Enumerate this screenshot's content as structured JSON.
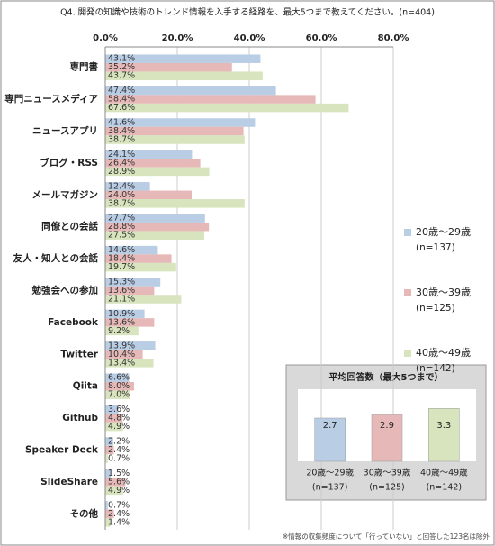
{
  "chart_data": [
    {
      "type": "hbar",
      "title": "Q4. 開発の知識や技術のトレンド情報を入手する経路を、最大5つまで教えてください。(n=404)",
      "categories": [
        "専門書",
        "専門ニュースメディア",
        "ニュースアプリ",
        "ブログ・RSS",
        "メールマガジン",
        "同僚との会話",
        "友人・知人との会話",
        "勉強会への参加",
        "Facebook",
        "Twitter",
        "Qiita",
        "Github",
        "Speaker Deck",
        "SlideShare",
        "その他"
      ],
      "series": [
        {
          "name": "20歳～29歳",
          "sublabel": "(n=137)",
          "color": "#b9cde5",
          "values": [
            43.1,
            47.4,
            41.6,
            24.1,
            12.4,
            27.7,
            14.6,
            15.3,
            10.9,
            13.9,
            6.6,
            3.6,
            2.2,
            1.5,
            0.7
          ],
          "value_labels": [
            "43.1%",
            "47.4%",
            "41.6%",
            "24.1%",
            "12.4%",
            "27.7%",
            "14.6%",
            "15.3%",
            "10.9%",
            "13.9%",
            "6.6%",
            "3.6%",
            "2.2%",
            "1.5%",
            "0.7%"
          ]
        },
        {
          "name": "30歳～39歳",
          "sublabel": "(n=125)",
          "color": "#e6b9b8",
          "values": [
            35.2,
            58.4,
            38.4,
            26.4,
            24.0,
            28.8,
            18.4,
            13.6,
            13.6,
            10.4,
            8.0,
            4.8,
            2.4,
            5.6,
            2.4
          ],
          "value_labels": [
            "35.2%",
            "58.4%",
            "38.4%",
            "26.4%",
            "24.0%",
            "28.8%",
            "18.4%",
            "13.6%",
            "13.6%",
            "10.4%",
            "8.0%",
            "4.8%",
            "2.4%",
            "5.6%",
            "2.4%"
          ]
        },
        {
          "name": "40歳～49歳",
          "sublabel": "(n=142)",
          "color": "#d7e4bd",
          "values": [
            43.7,
            67.6,
            38.7,
            28.9,
            38.7,
            27.5,
            19.7,
            21.1,
            9.2,
            13.4,
            7.0,
            4.9,
            0.7,
            4.9,
            1.4
          ],
          "value_labels": [
            "43.7%",
            "67.6%",
            "38.7%",
            "28.9%",
            "38.7%",
            "27.5%",
            "19.7%",
            "21.1%",
            "9.2%",
            "13.4%",
            "7.0%",
            "4.9%",
            "0.7%",
            "4.9%",
            "1.4%"
          ]
        }
      ],
      "xlim": [
        0,
        80
      ],
      "xticks": [
        {
          "value": 0,
          "label": "0.0%"
        },
        {
          "value": 20,
          "label": "20.0%"
        },
        {
          "value": 40,
          "label": "40.0%"
        },
        {
          "value": 60,
          "label": "60.0%"
        },
        {
          "value": 80,
          "label": "80.0%"
        }
      ],
      "grid": true,
      "legend": "right",
      "note": "※情報の収集頻度について「行っていない」と回答した123名は除外"
    },
    {
      "type": "bar",
      "title": "平均回答数（最大5つまで）",
      "categories": [
        "20歳～29歳",
        "30歳～39歳",
        "40歳～49歳"
      ],
      "category_sublabels": [
        "(n=137)",
        "(n=125)",
        "(n=142)"
      ],
      "values": [
        2.7,
        2.9,
        3.3
      ],
      "colors": [
        "#b9cde5",
        "#e6b9b8",
        "#d7e4bd"
      ],
      "ylim": [
        0,
        4.5
      ]
    }
  ]
}
